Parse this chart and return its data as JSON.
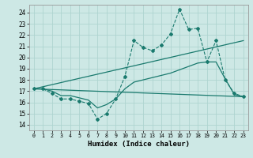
{
  "xlabel": "Humidex (Indice chaleur)",
  "x_ticks": [
    0,
    1,
    2,
    3,
    4,
    5,
    6,
    7,
    8,
    9,
    10,
    11,
    12,
    13,
    14,
    15,
    16,
    17,
    18,
    19,
    20,
    21,
    22,
    23
  ],
  "y_ticks": [
    14,
    15,
    16,
    17,
    18,
    19,
    20,
    21,
    22,
    23,
    24
  ],
  "xlim": [
    -0.5,
    23.5
  ],
  "ylim": [
    13.5,
    24.7
  ],
  "background_color": "#cde8e5",
  "grid_color": "#aed4d0",
  "line_color": "#1a7a6e",
  "line1_x": [
    0,
    1,
    2,
    3,
    4,
    5,
    6,
    7,
    8,
    9,
    10,
    11,
    12,
    13,
    14,
    15,
    16,
    17,
    18,
    19,
    20,
    21,
    22,
    23
  ],
  "line1_y": [
    17.2,
    17.2,
    16.8,
    16.3,
    16.3,
    16.1,
    15.9,
    14.5,
    15.0,
    16.3,
    18.3,
    21.5,
    20.9,
    20.6,
    21.1,
    22.1,
    24.3,
    22.5,
    22.6,
    19.6,
    21.5,
    18.0,
    16.8,
    16.5
  ],
  "line2_x": [
    0,
    23
  ],
  "line2_y": [
    17.2,
    16.5
  ],
  "line3_x": [
    0,
    23
  ],
  "line3_y": [
    17.2,
    21.5
  ],
  "line4_x": [
    0,
    1,
    2,
    3,
    4,
    5,
    6,
    7,
    8,
    9,
    10,
    11,
    12,
    13,
    14,
    15,
    16,
    17,
    18,
    19,
    20,
    21,
    22,
    23
  ],
  "line4_y": [
    17.2,
    17.2,
    17.0,
    16.6,
    16.6,
    16.4,
    16.2,
    15.5,
    15.8,
    16.3,
    17.2,
    17.8,
    18.0,
    18.2,
    18.4,
    18.6,
    18.9,
    19.2,
    19.5,
    19.6,
    19.6,
    18.1,
    16.7,
    16.5
  ]
}
